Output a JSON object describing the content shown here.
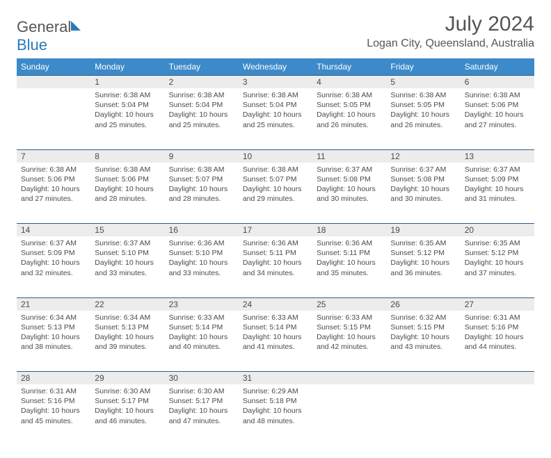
{
  "logo": {
    "text1": "General",
    "text2": "Blue"
  },
  "title": "July 2024",
  "location": "Logan City, Queensland, Australia",
  "colors": {
    "header_bg": "#3c8ac9",
    "week_border": "#2c5d8c",
    "daynum_bg": "#ececec",
    "text": "#4a4a4a",
    "logo_accent": "#2a7ab9"
  },
  "day_headers": [
    "Sunday",
    "Monday",
    "Tuesday",
    "Wednesday",
    "Thursday",
    "Friday",
    "Saturday"
  ],
  "weeks": [
    [
      {
        "num": "",
        "sunrise": "",
        "sunset": "",
        "daylight": ""
      },
      {
        "num": "1",
        "sunrise": "Sunrise: 6:38 AM",
        "sunset": "Sunset: 5:04 PM",
        "daylight": "Daylight: 10 hours and 25 minutes."
      },
      {
        "num": "2",
        "sunrise": "Sunrise: 6:38 AM",
        "sunset": "Sunset: 5:04 PM",
        "daylight": "Daylight: 10 hours and 25 minutes."
      },
      {
        "num": "3",
        "sunrise": "Sunrise: 6:38 AM",
        "sunset": "Sunset: 5:04 PM",
        "daylight": "Daylight: 10 hours and 25 minutes."
      },
      {
        "num": "4",
        "sunrise": "Sunrise: 6:38 AM",
        "sunset": "Sunset: 5:05 PM",
        "daylight": "Daylight: 10 hours and 26 minutes."
      },
      {
        "num": "5",
        "sunrise": "Sunrise: 6:38 AM",
        "sunset": "Sunset: 5:05 PM",
        "daylight": "Daylight: 10 hours and 26 minutes."
      },
      {
        "num": "6",
        "sunrise": "Sunrise: 6:38 AM",
        "sunset": "Sunset: 5:06 PM",
        "daylight": "Daylight: 10 hours and 27 minutes."
      }
    ],
    [
      {
        "num": "7",
        "sunrise": "Sunrise: 6:38 AM",
        "sunset": "Sunset: 5:06 PM",
        "daylight": "Daylight: 10 hours and 27 minutes."
      },
      {
        "num": "8",
        "sunrise": "Sunrise: 6:38 AM",
        "sunset": "Sunset: 5:06 PM",
        "daylight": "Daylight: 10 hours and 28 minutes."
      },
      {
        "num": "9",
        "sunrise": "Sunrise: 6:38 AM",
        "sunset": "Sunset: 5:07 PM",
        "daylight": "Daylight: 10 hours and 28 minutes."
      },
      {
        "num": "10",
        "sunrise": "Sunrise: 6:38 AM",
        "sunset": "Sunset: 5:07 PM",
        "daylight": "Daylight: 10 hours and 29 minutes."
      },
      {
        "num": "11",
        "sunrise": "Sunrise: 6:37 AM",
        "sunset": "Sunset: 5:08 PM",
        "daylight": "Daylight: 10 hours and 30 minutes."
      },
      {
        "num": "12",
        "sunrise": "Sunrise: 6:37 AM",
        "sunset": "Sunset: 5:08 PM",
        "daylight": "Daylight: 10 hours and 30 minutes."
      },
      {
        "num": "13",
        "sunrise": "Sunrise: 6:37 AM",
        "sunset": "Sunset: 5:09 PM",
        "daylight": "Daylight: 10 hours and 31 minutes."
      }
    ],
    [
      {
        "num": "14",
        "sunrise": "Sunrise: 6:37 AM",
        "sunset": "Sunset: 5:09 PM",
        "daylight": "Daylight: 10 hours and 32 minutes."
      },
      {
        "num": "15",
        "sunrise": "Sunrise: 6:37 AM",
        "sunset": "Sunset: 5:10 PM",
        "daylight": "Daylight: 10 hours and 33 minutes."
      },
      {
        "num": "16",
        "sunrise": "Sunrise: 6:36 AM",
        "sunset": "Sunset: 5:10 PM",
        "daylight": "Daylight: 10 hours and 33 minutes."
      },
      {
        "num": "17",
        "sunrise": "Sunrise: 6:36 AM",
        "sunset": "Sunset: 5:11 PM",
        "daylight": "Daylight: 10 hours and 34 minutes."
      },
      {
        "num": "18",
        "sunrise": "Sunrise: 6:36 AM",
        "sunset": "Sunset: 5:11 PM",
        "daylight": "Daylight: 10 hours and 35 minutes."
      },
      {
        "num": "19",
        "sunrise": "Sunrise: 6:35 AM",
        "sunset": "Sunset: 5:12 PM",
        "daylight": "Daylight: 10 hours and 36 minutes."
      },
      {
        "num": "20",
        "sunrise": "Sunrise: 6:35 AM",
        "sunset": "Sunset: 5:12 PM",
        "daylight": "Daylight: 10 hours and 37 minutes."
      }
    ],
    [
      {
        "num": "21",
        "sunrise": "Sunrise: 6:34 AM",
        "sunset": "Sunset: 5:13 PM",
        "daylight": "Daylight: 10 hours and 38 minutes."
      },
      {
        "num": "22",
        "sunrise": "Sunrise: 6:34 AM",
        "sunset": "Sunset: 5:13 PM",
        "daylight": "Daylight: 10 hours and 39 minutes."
      },
      {
        "num": "23",
        "sunrise": "Sunrise: 6:33 AM",
        "sunset": "Sunset: 5:14 PM",
        "daylight": "Daylight: 10 hours and 40 minutes."
      },
      {
        "num": "24",
        "sunrise": "Sunrise: 6:33 AM",
        "sunset": "Sunset: 5:14 PM",
        "daylight": "Daylight: 10 hours and 41 minutes."
      },
      {
        "num": "25",
        "sunrise": "Sunrise: 6:33 AM",
        "sunset": "Sunset: 5:15 PM",
        "daylight": "Daylight: 10 hours and 42 minutes."
      },
      {
        "num": "26",
        "sunrise": "Sunrise: 6:32 AM",
        "sunset": "Sunset: 5:15 PM",
        "daylight": "Daylight: 10 hours and 43 minutes."
      },
      {
        "num": "27",
        "sunrise": "Sunrise: 6:31 AM",
        "sunset": "Sunset: 5:16 PM",
        "daylight": "Daylight: 10 hours and 44 minutes."
      }
    ],
    [
      {
        "num": "28",
        "sunrise": "Sunrise: 6:31 AM",
        "sunset": "Sunset: 5:16 PM",
        "daylight": "Daylight: 10 hours and 45 minutes."
      },
      {
        "num": "29",
        "sunrise": "Sunrise: 6:30 AM",
        "sunset": "Sunset: 5:17 PM",
        "daylight": "Daylight: 10 hours and 46 minutes."
      },
      {
        "num": "30",
        "sunrise": "Sunrise: 6:30 AM",
        "sunset": "Sunset: 5:17 PM",
        "daylight": "Daylight: 10 hours and 47 minutes."
      },
      {
        "num": "31",
        "sunrise": "Sunrise: 6:29 AM",
        "sunset": "Sunset: 5:18 PM",
        "daylight": "Daylight: 10 hours and 48 minutes."
      },
      {
        "num": "",
        "sunrise": "",
        "sunset": "",
        "daylight": ""
      },
      {
        "num": "",
        "sunrise": "",
        "sunset": "",
        "daylight": ""
      },
      {
        "num": "",
        "sunrise": "",
        "sunset": "",
        "daylight": ""
      }
    ]
  ]
}
